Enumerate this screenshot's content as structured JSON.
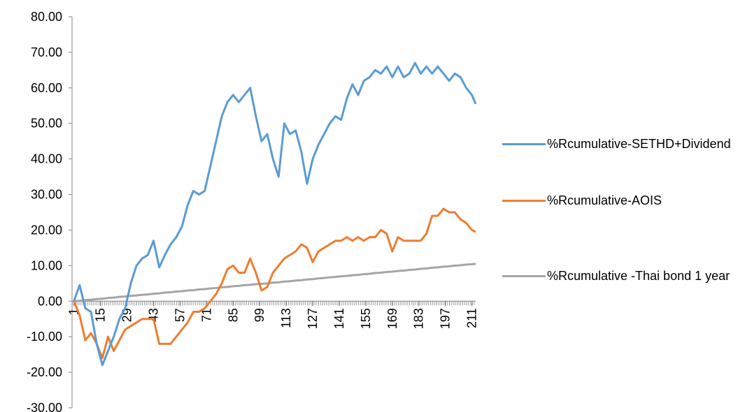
{
  "chart_data": {
    "type": "line",
    "x": [
      1,
      4,
      7,
      10,
      13,
      16,
      19,
      22,
      25,
      28,
      31,
      34,
      37,
      40,
      43,
      46,
      49,
      52,
      55,
      58,
      61,
      64,
      67,
      70,
      73,
      76,
      79,
      82,
      85,
      88,
      91,
      94,
      97,
      100,
      103,
      106,
      109,
      112,
      115,
      118,
      121,
      124,
      127,
      130,
      133,
      136,
      139,
      142,
      145,
      148,
      151,
      154,
      157,
      160,
      163,
      166,
      169,
      172,
      175,
      178,
      181,
      184,
      187,
      190,
      193,
      196,
      199,
      202,
      205,
      208,
      211,
      213
    ],
    "series": [
      {
        "name": "%Rcumulative-SETHD+Dividend",
        "color": "#5b9bd5",
        "values": [
          0,
          4.5,
          -2,
          -3,
          -12,
          -18,
          -14,
          -10,
          -5,
          -2,
          5,
          10,
          12,
          13,
          17,
          9.5,
          13,
          16,
          18,
          21,
          27,
          31,
          30,
          31,
          38,
          45,
          52,
          56,
          58,
          56,
          58,
          60,
          52,
          45,
          47,
          40,
          35,
          50,
          47,
          48,
          42,
          33,
          40,
          44,
          47,
          50,
          52,
          51,
          57,
          61,
          58,
          62,
          63,
          65,
          64,
          66,
          63,
          66,
          63,
          64,
          67,
          64,
          66,
          64,
          66,
          64,
          62,
          64,
          63,
          60,
          58,
          55.5
        ]
      },
      {
        "name": "%Rcumulative-AOIS",
        "color": "#ed7d31",
        "values": [
          0,
          -4,
          -11,
          -9,
          -12,
          -16,
          -10,
          -14,
          -11,
          -8,
          -7,
          -6,
          -5,
          -5,
          -5,
          -12,
          -12,
          -12,
          -10,
          -8,
          -6,
          -3,
          -3,
          -2,
          0,
          2,
          5,
          9,
          10,
          8,
          8,
          12,
          8,
          3,
          4,
          8,
          10,
          12,
          13,
          14,
          16,
          15,
          11,
          14,
          15,
          16,
          17,
          17,
          18,
          17,
          18,
          17,
          18,
          18,
          20,
          19,
          14,
          18,
          17,
          17,
          17,
          17,
          19,
          24,
          24,
          26,
          25,
          25,
          23,
          22,
          20,
          19.5
        ]
      },
      {
        "name": "%Rcumulative -Thai bond 1 year",
        "color": "#a5a5a5",
        "values": [
          0,
          0.1,
          0.3,
          0.4,
          0.6,
          0.7,
          0.9,
          1.0,
          1.2,
          1.3,
          1.5,
          1.6,
          1.8,
          1.9,
          2.1,
          2.2,
          2.4,
          2.5,
          2.7,
          2.8,
          3.0,
          3.1,
          3.3,
          3.4,
          3.6,
          3.7,
          3.9,
          4.0,
          4.2,
          4.3,
          4.5,
          4.6,
          4.8,
          4.9,
          5.0,
          5.2,
          5.3,
          5.5,
          5.6,
          5.8,
          5.9,
          6.1,
          6.2,
          6.4,
          6.5,
          6.7,
          6.8,
          7.0,
          7.1,
          7.3,
          7.4,
          7.6,
          7.7,
          7.9,
          8.0,
          8.2,
          8.3,
          8.5,
          8.6,
          8.8,
          8.9,
          9.1,
          9.2,
          9.4,
          9.5,
          9.7,
          9.8,
          10.0,
          10.1,
          10.3,
          10.4,
          10.5
        ]
      }
    ],
    "xlim": [
      0,
      213
    ],
    "xticks": [
      1,
      15,
      29,
      43,
      57,
      71,
      85,
      99,
      113,
      127,
      141,
      155,
      169,
      183,
      197,
      211
    ],
    "ylim": [
      -30,
      80
    ],
    "yticks": [
      {
        "value": -30,
        "label": "-30.00"
      },
      {
        "value": -20,
        "label": "-20.00"
      },
      {
        "value": -10,
        "label": "-10.00"
      },
      {
        "value": 0,
        "label": "0.00"
      },
      {
        "value": 10,
        "label": "10.00"
      },
      {
        "value": 20,
        "label": "20.00"
      },
      {
        "value": 30,
        "label": "30.00"
      },
      {
        "value": 40,
        "label": "40.00"
      },
      {
        "value": 50,
        "label": "50.00"
      },
      {
        "value": 60,
        "label": "60.00"
      },
      {
        "value": 70,
        "label": "70.00"
      },
      {
        "value": 80,
        "label": "80.00"
      }
    ],
    "legend": "right",
    "grid": false
  }
}
